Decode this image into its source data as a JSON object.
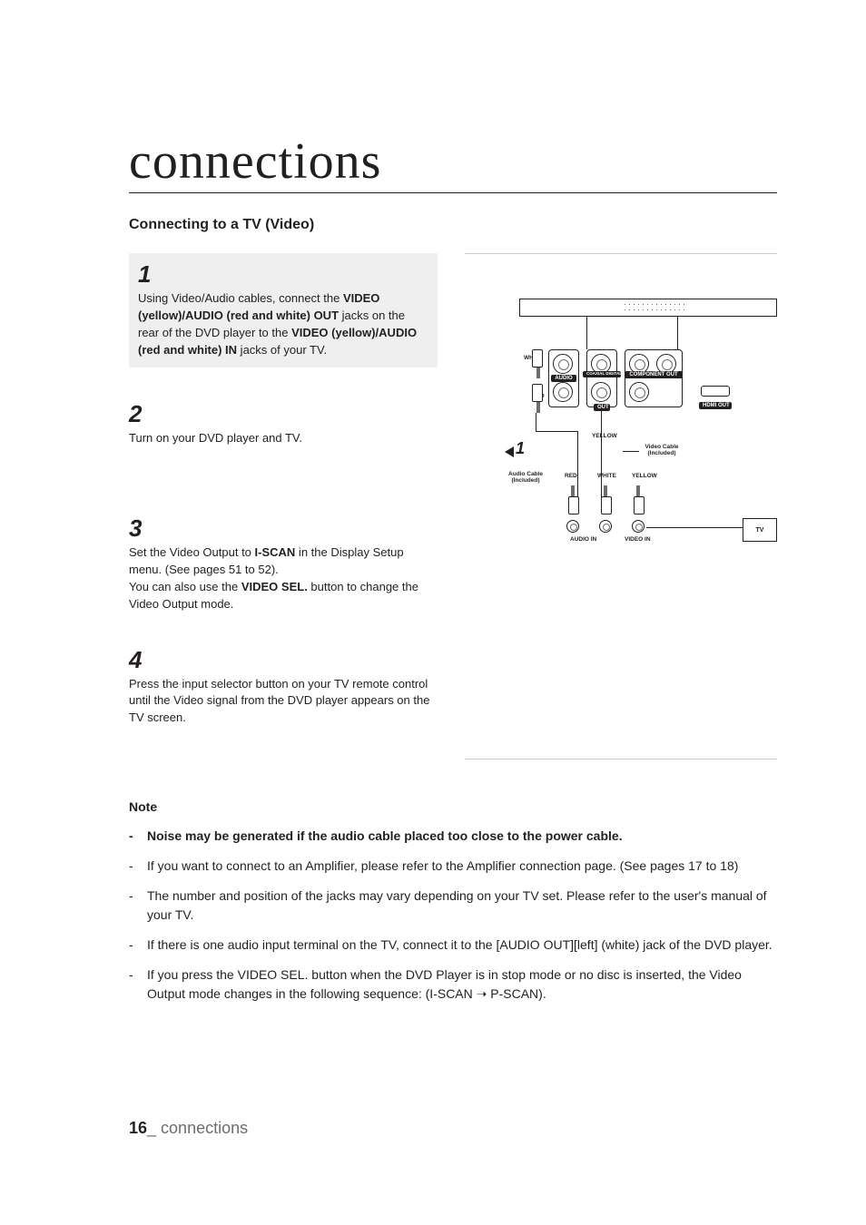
{
  "chapter_title": "connections",
  "section_title": "Connecting to a TV (Video)",
  "steps": [
    {
      "num": "1",
      "highlighted": true,
      "body_html": "Using Video/Audio cables, connect the <b>VIDEO (yellow)/AUDIO (red and white) OUT</b> jacks on the rear of the DVD player to the <b>VIDEO (yellow)/AUDIO (red and white) IN</b> jacks of your TV."
    },
    {
      "num": "2",
      "highlighted": false,
      "body_html": "Turn on your DVD player and TV."
    },
    {
      "num": "3",
      "highlighted": false,
      "body_html": "Set the Video Output to <b>I-SCAN</b> in the Display Setup menu. (See pages 51 to 52).<br>You can also use the <b>VIDEO SEL.</b> button to change the Video Output mode."
    },
    {
      "num": "4",
      "highlighted": false,
      "body_html": "Press the input selector button on your TV remote control until the Video signal from the DVD player appears on the TV screen."
    }
  ],
  "notes": {
    "heading": "Note",
    "items": [
      {
        "bold": true,
        "text": "Noise may be generated if the audio cable placed too close to the power cable."
      },
      {
        "bold": false,
        "text": "If you want to connect to an Amplifier, please refer to the Amplifier connection page. (See pages 17 to 18)"
      },
      {
        "bold": false,
        "text": "The number and position of the jacks may vary depending on your TV set. Please refer to the user's manual of your TV."
      },
      {
        "bold": false,
        "text": "If there is one audio input terminal on the TV, connect it to the [AUDIO OUT][left] (white) jack of the DVD player."
      },
      {
        "bold": false,
        "text": "If you press the VIDEO SEL. button when the DVD Player is in stop mode or no disc is inserted, the Video Output mode changes in the following sequence: (I-SCAN ➝ P-SCAN)."
      }
    ]
  },
  "footer": {
    "page_num": "16",
    "separator": "_",
    "section": " connections"
  },
  "diagram": {
    "marker": "1",
    "labels": {
      "white": "WHITE",
      "red": "RED",
      "yellow": "YELLOW",
      "audio": "AUDIO",
      "coaxial": "COAXIAL DIGITAL OUT",
      "component": "COMPONENT OUT",
      "out": "OUT",
      "hdmi": "HDMI OUT",
      "audio_cable": "Audio Cable",
      "included": "(Included)",
      "video_cable": "Video Cable",
      "tv": "TV",
      "audio_in": "AUDIO IN",
      "video_in": "VIDEO IN"
    },
    "colors": {
      "line": "#231f20",
      "muted": "#6d6d6d",
      "bg": "#ffffff"
    }
  }
}
